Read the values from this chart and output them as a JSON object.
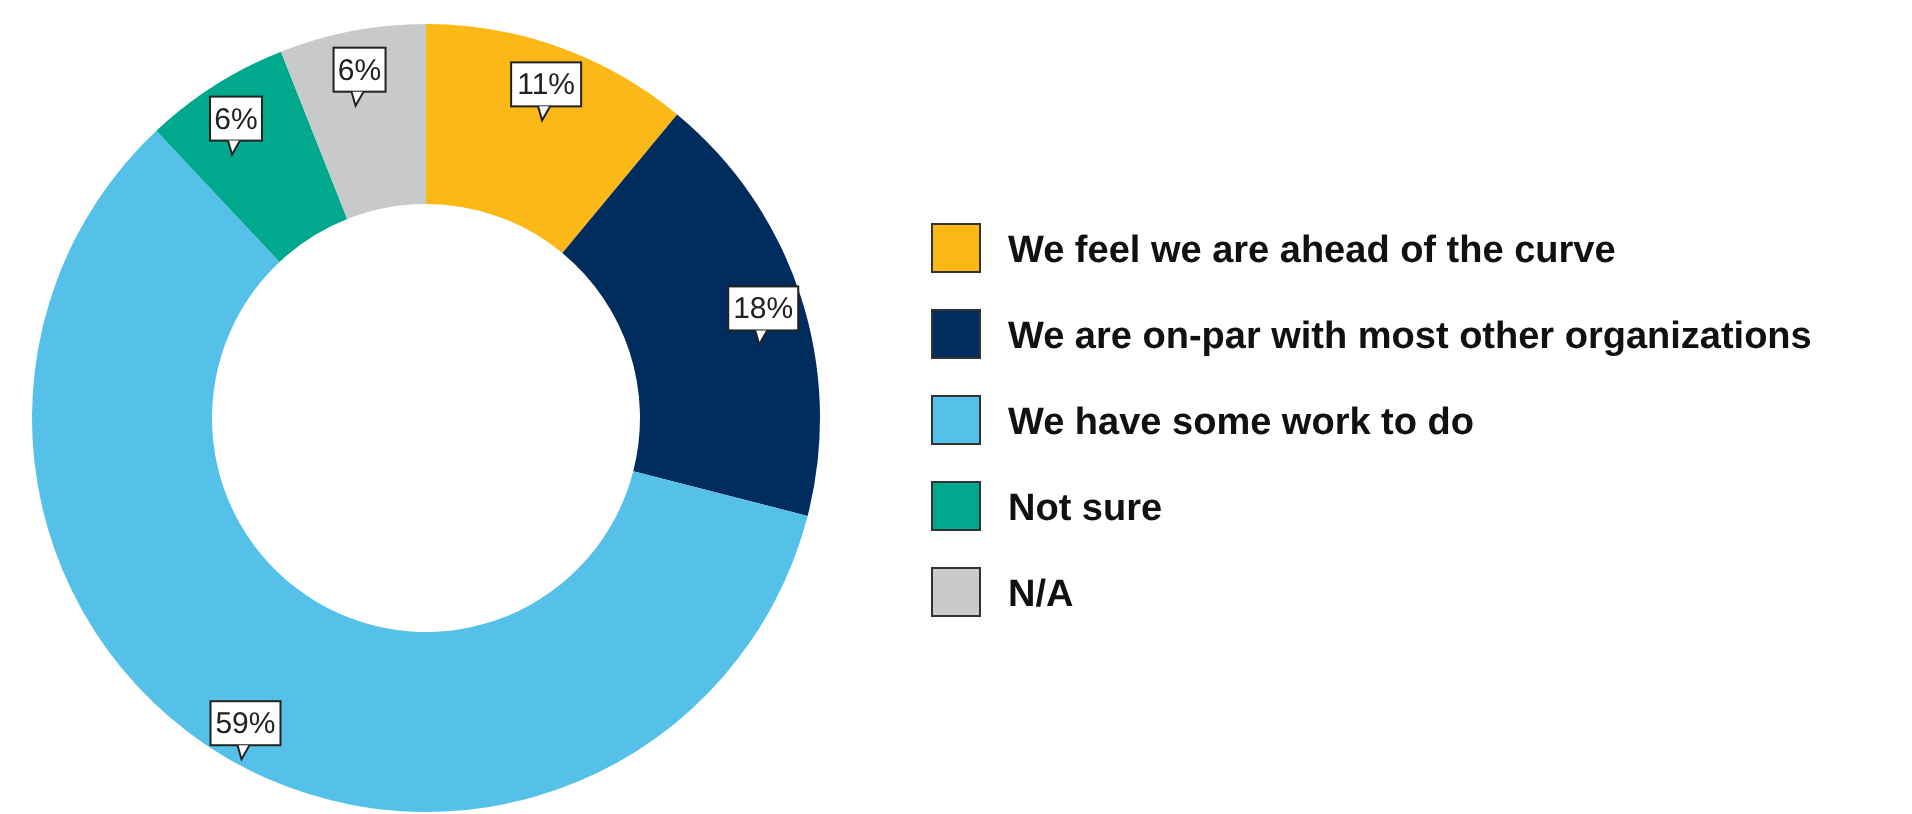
{
  "chart_data": {
    "type": "donut",
    "categories": [
      "We feel we are ahead of the curve",
      "We are on-par with most other organizations",
      "We have some work to do",
      "Not sure",
      "N/A"
    ],
    "values": [
      11,
      18,
      59,
      6,
      6
    ],
    "colors": [
      "#fbb817",
      "#002d5e",
      "#55c1e9",
      "#00a88e",
      "#c8c9cb"
    ],
    "value_labels": [
      "11%",
      "18%",
      "59%",
      "6%",
      "6%"
    ],
    "legend": "right"
  }
}
